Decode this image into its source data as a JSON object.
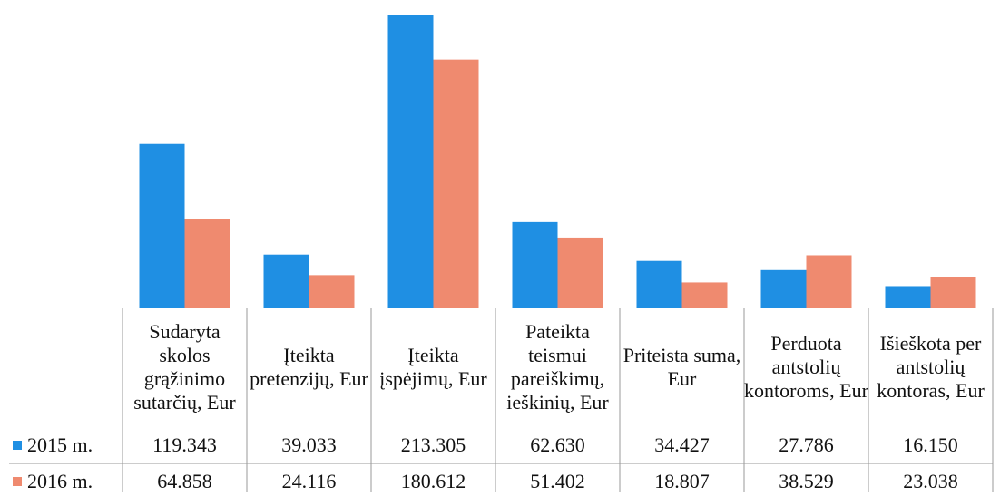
{
  "chart_data": {
    "type": "bar",
    "categories": [
      "Sudaryta skolos grąžinimo sutarčių, Eur",
      "Įteikta pretenzijų, Eur",
      "Įteikta įspėjimų, Eur",
      "Pateikta teismui pareiškimų, ieškinių, Eur",
      "Priteista suma, Eur",
      "Perduota antstolių kontoroms, Eur",
      "Išieškota per antstolių kontoras, Eur"
    ],
    "series": [
      {
        "name": "2015 m.",
        "color": "#1f8fe3",
        "values": [
          119343,
          39033,
          213305,
          62630,
          34427,
          27786,
          16150
        ],
        "value_labels": [
          "119.343",
          "39.033",
          "213.305",
          "62.630",
          "34.427",
          "27.786",
          "16.150"
        ]
      },
      {
        "name": "2016 m.",
        "color": "#ef8a6f",
        "values": [
          64858,
          24116,
          180612,
          51402,
          18807,
          38529,
          23038
        ],
        "value_labels": [
          "64.858",
          "24.116",
          "180.612",
          "51.402",
          "18.807",
          "38.529",
          "23.038"
        ]
      }
    ]
  }
}
